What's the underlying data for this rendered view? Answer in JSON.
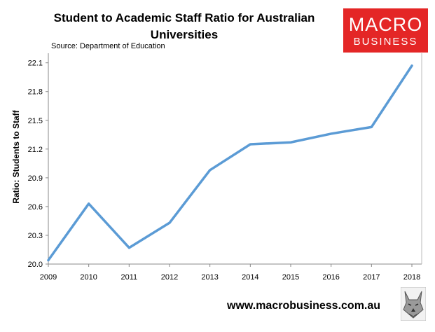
{
  "chart_data": {
    "type": "line",
    "title": "Student to Academic Staff Ratio for Australian Universities",
    "source": "Source: Department of Education",
    "ylabel": "Ratio: Students to Staff",
    "xlabel": "",
    "x": [
      "2009",
      "2010",
      "2011",
      "2012",
      "2013",
      "2014",
      "2015",
      "2016",
      "2017",
      "2018"
    ],
    "series": [
      {
        "values": [
          20.04,
          20.63,
          20.17,
          20.43,
          20.98,
          21.25,
          21.27,
          21.36,
          21.43,
          22.07
        ]
      }
    ],
    "ylim": [
      20.0,
      22.2
    ],
    "yticks": [
      "20.0",
      "20.3",
      "20.6",
      "20.9",
      "21.2",
      "21.5",
      "21.8",
      "22.1"
    ],
    "line_color": "#5b9bd5",
    "grid": false
  },
  "branding": {
    "logo_top": "MACRO",
    "logo_bottom": "BUSINESS",
    "logo_color": "#e42626",
    "website": "www.macrobusiness.com.au"
  }
}
